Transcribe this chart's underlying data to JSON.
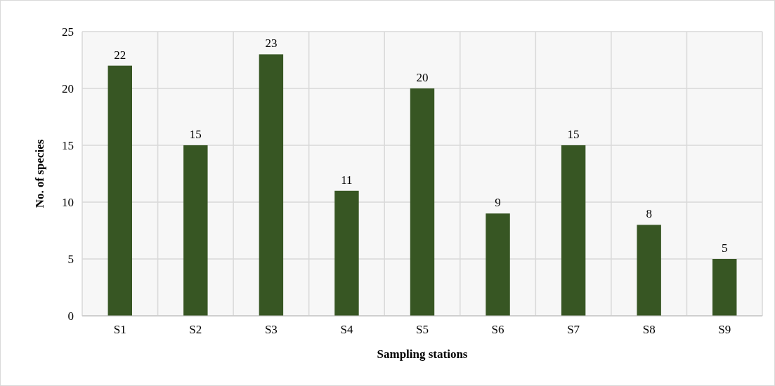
{
  "chart_data": {
    "type": "bar",
    "xlabel": "Sampling stations",
    "ylabel": "No. of species",
    "categories": [
      "S1",
      "S2",
      "S3",
      "S4",
      "S5",
      "S6",
      "S7",
      "S8",
      "S9"
    ],
    "values": [
      22,
      15,
      23,
      11,
      20,
      9,
      15,
      8,
      5
    ],
    "color": "#375623",
    "ylim": [
      0,
      25
    ],
    "yticks": [
      0,
      5,
      10,
      15,
      20,
      25
    ],
    "grid": true,
    "data_labels": true
  }
}
